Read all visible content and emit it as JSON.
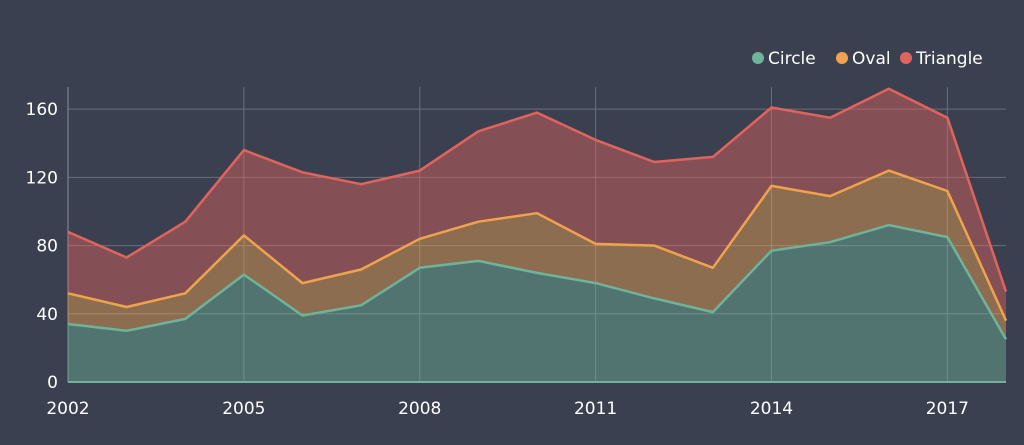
{
  "chart_data": {
    "type": "area",
    "stacked": true,
    "x": [
      2002,
      2003,
      2004,
      2005,
      2006,
      2007,
      2008,
      2009,
      2010,
      2011,
      2012,
      2013,
      2014,
      2015,
      2016,
      2017,
      2018
    ],
    "x_tick_labels": [
      "2002",
      "2005",
      "2008",
      "2011",
      "2014",
      "2017"
    ],
    "y_tick_labels": [
      "0",
      "40",
      "80",
      "120",
      "160"
    ],
    "ylim": [
      0,
      173
    ],
    "xlim": [
      2002,
      2018
    ],
    "grid": true,
    "legend_position": "top-right",
    "series": [
      {
        "name": "Circle",
        "color": "#6fb39a",
        "values": [
          34,
          30,
          37,
          63,
          39,
          45,
          67,
          71,
          64,
          58,
          49,
          41,
          77,
          82,
          92,
          85,
          25
        ]
      },
      {
        "name": "Oval",
        "color": "#f0a34d",
        "values": [
          18,
          14,
          15,
          23,
          19,
          21,
          17,
          23,
          35,
          23,
          31,
          26,
          38,
          27,
          32,
          27,
          11
        ]
      },
      {
        "name": "Triangle",
        "color": "#e0645c",
        "values": [
          36,
          29,
          42,
          50,
          65,
          50,
          40,
          53,
          59,
          61,
          49,
          65,
          46,
          46,
          48,
          43,
          17
        ]
      }
    ]
  }
}
